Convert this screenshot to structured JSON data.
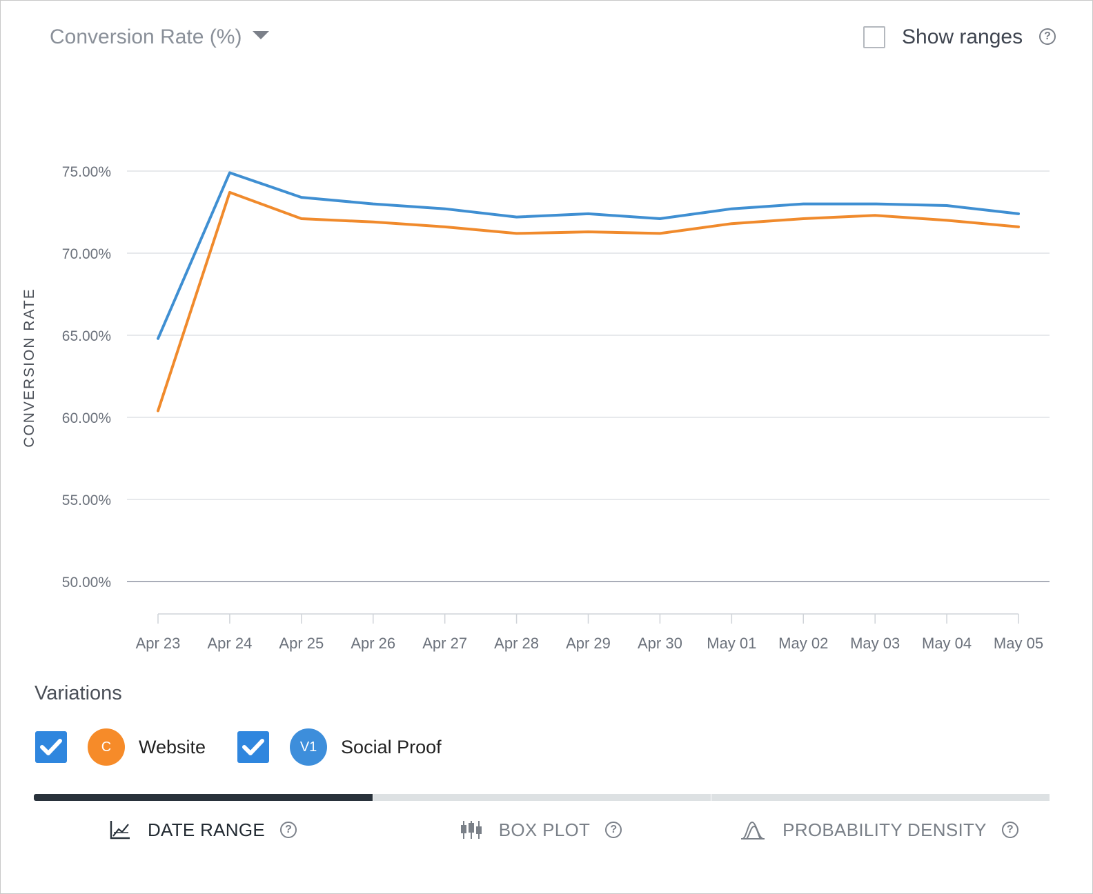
{
  "header": {
    "metric_label": "Conversion Rate (%)",
    "show_ranges_label": "Show ranges",
    "help_glyph": "?"
  },
  "chart_data": {
    "type": "line",
    "ylabel": "CONVERSION RATE",
    "xlabel": "",
    "categories": [
      "Apr 23",
      "Apr 24",
      "Apr 25",
      "Apr 26",
      "Apr 27",
      "Apr 28",
      "Apr 29",
      "Apr 30",
      "May 01",
      "May 02",
      "May 03",
      "May 04",
      "May 05"
    ],
    "yticks": [
      "75.00%",
      "70.00%",
      "65.00%",
      "60.00%",
      "55.00%",
      "50.00%"
    ],
    "ylim": [
      50,
      75
    ],
    "grid": true,
    "series": [
      {
        "name": "Social Proof",
        "color": "#3f8fd2",
        "values": [
          64.8,
          74.9,
          73.4,
          73.0,
          72.7,
          72.2,
          72.4,
          72.1,
          72.7,
          73.0,
          73.0,
          72.9,
          72.4
        ]
      },
      {
        "name": "Website",
        "color": "#f08a2c",
        "values": [
          60.4,
          73.7,
          72.1,
          71.9,
          71.6,
          71.2,
          71.3,
          71.2,
          71.8,
          72.1,
          72.3,
          72.0,
          71.6
        ]
      }
    ]
  },
  "variations": {
    "title": "Variations",
    "items": [
      {
        "badge": "C",
        "name": "Website",
        "color": "#f68b29",
        "checked": true
      },
      {
        "badge": "V1",
        "name": "Social Proof",
        "color": "#3d8edb",
        "checked": true
      }
    ]
  },
  "tabs": [
    {
      "label": "DATE RANGE",
      "icon": "line-chart-icon",
      "active": true
    },
    {
      "label": "BOX PLOT",
      "icon": "box-plot-icon",
      "active": false
    },
    {
      "label": "PROBABILITY DENSITY",
      "icon": "density-icon",
      "active": false
    }
  ]
}
